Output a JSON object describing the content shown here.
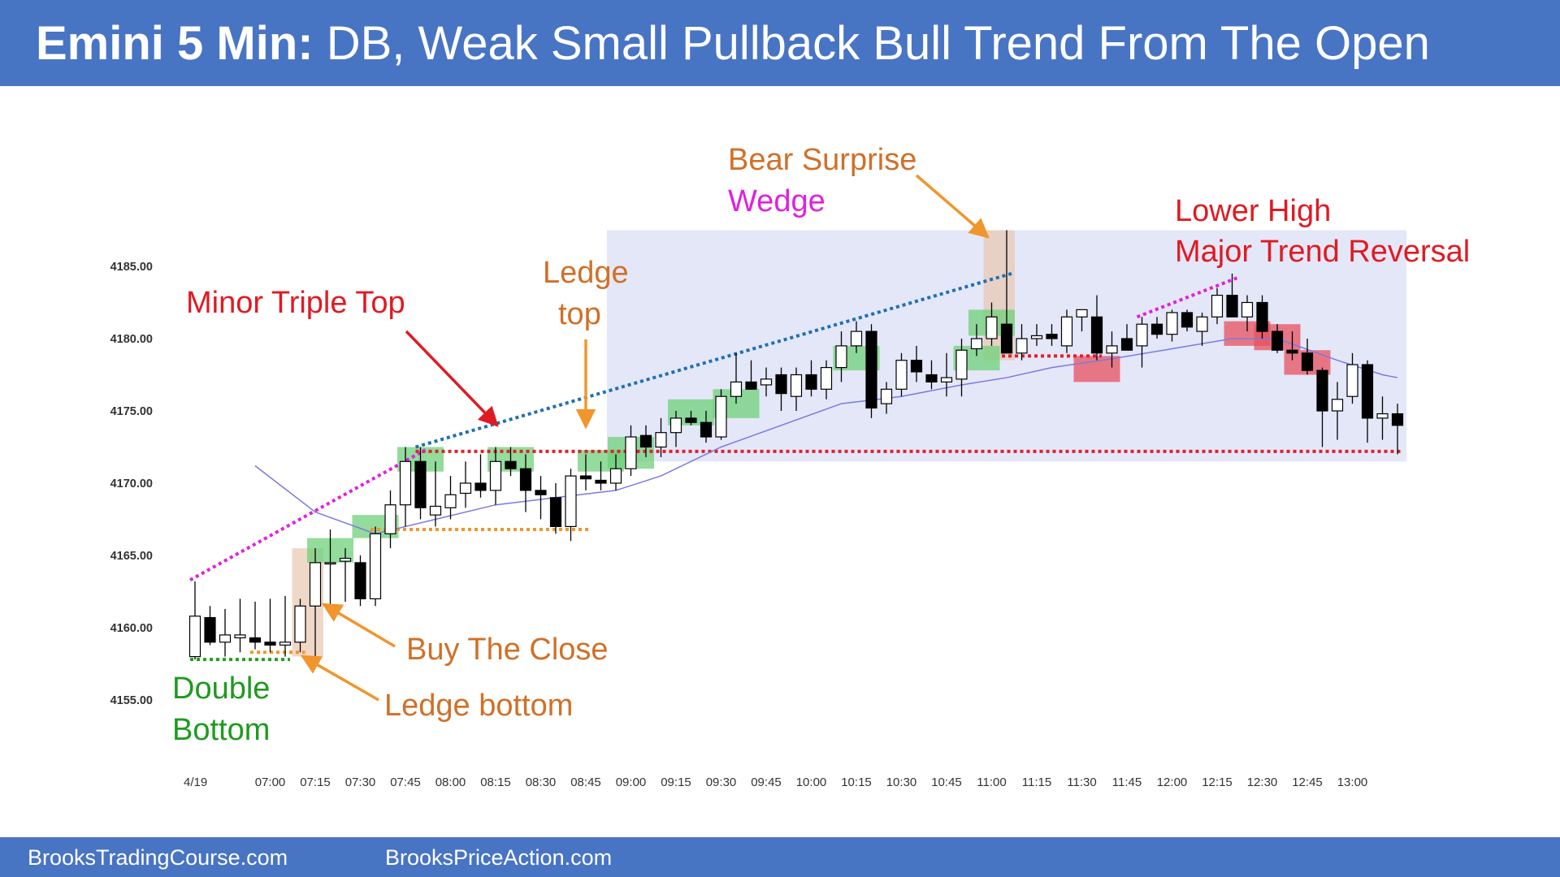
{
  "header": {
    "title_bold": "Emini 5 Min:",
    "title_rest": " DB, Weak Small Pullback Bull Trend From The Open"
  },
  "footer": {
    "left": "BrooksTradingCourse.com",
    "right": "BrooksPriceAction.com"
  },
  "colors": {
    "header_bg": "#4874c4",
    "bull_box": "#6fd07a",
    "bear_box": "#e8505f",
    "range_box": "#dfe3f7",
    "ema": "#7a7ae0",
    "support_line": "#e0202a",
    "wedge_line": "#1f6fb5",
    "magenta": "#e020e0",
    "orange": "#f0962c",
    "green_text": "#1e9a1e",
    "red_text": "#e01a22",
    "orange_text": "#d07028"
  },
  "chart_data": {
    "type": "candlestick",
    "title": "Emini 5 Min: DB, Weak Small Pullback Bull Trend From The Open",
    "date_label": "4/19",
    "y_ticks": [
      "4155.00",
      "4160.00",
      "4165.00",
      "4170.00",
      "4175.00",
      "4180.00",
      "4185.00"
    ],
    "ylim": [
      4151,
      4190
    ],
    "x_ticks": [
      {
        "bar": 5,
        "label": "07:00"
      },
      {
        "bar": 8,
        "label": "07:15"
      },
      {
        "bar": 11,
        "label": "07:30"
      },
      {
        "bar": 14,
        "label": "07:45"
      },
      {
        "bar": 17,
        "label": "08:00"
      },
      {
        "bar": 20,
        "label": "08:15"
      },
      {
        "bar": 23,
        "label": "08:30"
      },
      {
        "bar": 26,
        "label": "08:45"
      },
      {
        "bar": 29,
        "label": "09:00"
      },
      {
        "bar": 32,
        "label": "09:15"
      },
      {
        "bar": 35,
        "label": "09:30"
      },
      {
        "bar": 38,
        "label": "09:45"
      },
      {
        "bar": 41,
        "label": "10:00"
      },
      {
        "bar": 44,
        "label": "10:15"
      },
      {
        "bar": 47,
        "label": "10:30"
      },
      {
        "bar": 50,
        "label": "10:45"
      },
      {
        "bar": 53,
        "label": "11:00"
      },
      {
        "bar": 56,
        "label": "11:15"
      },
      {
        "bar": 59,
        "label": "11:30"
      },
      {
        "bar": 62,
        "label": "11:45"
      },
      {
        "bar": 65,
        "label": "12:00"
      },
      {
        "bar": 68,
        "label": "12:15"
      },
      {
        "bar": 71,
        "label": "12:30"
      },
      {
        "bar": 74,
        "label": "12:45"
      },
      {
        "bar": 77,
        "label": "13:00"
      }
    ],
    "bars": [
      [
        4158.0,
        4163.2,
        4157.8,
        4160.8
      ],
      [
        4160.7,
        4161.5,
        4158.8,
        4159.0
      ],
      [
        4159.0,
        4161.3,
        4158.0,
        4159.5
      ],
      [
        4159.3,
        4162.0,
        4158.3,
        4159.5
      ],
      [
        4159.3,
        4161.8,
        4158.5,
        4159.0
      ],
      [
        4159.0,
        4162.0,
        4158.3,
        4158.8
      ],
      [
        4158.8,
        4162.2,
        4158.0,
        4159.0
      ],
      [
        4159.0,
        4162.0,
        4158.3,
        4161.5
      ],
      [
        4161.5,
        4165.5,
        4158.0,
        4164.5
      ],
      [
        4164.5,
        4166.8,
        4161.5,
        4164.5
      ],
      [
        4164.6,
        4165.5,
        4161.8,
        4164.8
      ],
      [
        4164.5,
        4165.0,
        4161.5,
        4162.0
      ],
      [
        4162.0,
        4167.0,
        4161.5,
        4166.5
      ],
      [
        4166.5,
        4169.5,
        4165.5,
        4168.5
      ],
      [
        4168.5,
        4172.5,
        4167.0,
        4171.5
      ],
      [
        4171.5,
        4172.5,
        4167.5,
        4168.3
      ],
      [
        4167.8,
        4171.5,
        4167.0,
        4168.4
      ],
      [
        4168.3,
        4170.5,
        4167.5,
        4169.2
      ],
      [
        4169.3,
        4171.5,
        4168.3,
        4170.0
      ],
      [
        4170.0,
        4172.0,
        4169.0,
        4169.5
      ],
      [
        4169.5,
        4172.5,
        4168.5,
        4171.5
      ],
      [
        4171.5,
        4172.5,
        4170.5,
        4171.0
      ],
      [
        4171.0,
        4172.0,
        4168.0,
        4169.5
      ],
      [
        4169.5,
        4170.5,
        4167.5,
        4169.2
      ],
      [
        4169.0,
        4170.0,
        4166.5,
        4167.0
      ],
      [
        4167.0,
        4171.0,
        4166.0,
        4170.5
      ],
      [
        4170.5,
        4172.0,
        4169.5,
        4170.3
      ],
      [
        4170.2,
        4171.5,
        4169.5,
        4170.0
      ],
      [
        4170.0,
        4172.0,
        4169.5,
        4171.0
      ],
      [
        4171.0,
        4174.0,
        4170.5,
        4173.2
      ],
      [
        4173.3,
        4174.0,
        4171.8,
        4172.5
      ],
      [
        4172.5,
        4174.5,
        4171.8,
        4173.5
      ],
      [
        4173.5,
        4175.0,
        4172.5,
        4174.5
      ],
      [
        4174.5,
        4175.0,
        4174.0,
        4174.2
      ],
      [
        4174.2,
        4175.0,
        4172.8,
        4173.2
      ],
      [
        4173.2,
        4176.5,
        4173.0,
        4176.0
      ],
      [
        4176.0,
        4179.0,
        4175.5,
        4177.0
      ],
      [
        4177.0,
        4178.5,
        4176.5,
        4176.5
      ],
      [
        4176.8,
        4178.0,
        4176.0,
        4177.2
      ],
      [
        4177.5,
        4178.0,
        4175.0,
        4176.2
      ],
      [
        4176.0,
        4178.0,
        4175.0,
        4177.5
      ],
      [
        4177.5,
        4178.5,
        4176.0,
        4176.5
      ],
      [
        4176.5,
        4178.5,
        4175.8,
        4178.0
      ],
      [
        4178.0,
        4180.5,
        4177.0,
        4179.5
      ],
      [
        4179.5,
        4181.2,
        4179.0,
        4180.5
      ],
      [
        4180.5,
        4181.0,
        4174.5,
        4175.2
      ],
      [
        4175.5,
        4177.0,
        4174.8,
        4176.5
      ],
      [
        4176.5,
        4179.0,
        4176.0,
        4178.5
      ],
      [
        4178.5,
        4179.5,
        4177.0,
        4177.7
      ],
      [
        4177.5,
        4178.5,
        4176.5,
        4177.0
      ],
      [
        4177.0,
        4179.0,
        4176.0,
        4177.3
      ],
      [
        4177.2,
        4180.0,
        4176.0,
        4179.2
      ],
      [
        4179.3,
        4181.0,
        4178.8,
        4180.0
      ],
      [
        4180.0,
        4182.5,
        4179.5,
        4181.5
      ],
      [
        4181.0,
        4187.5,
        4179.5,
        4179.0
      ],
      [
        4179.0,
        4181.0,
        4178.5,
        4180.0
      ],
      [
        4180.0,
        4181.0,
        4179.5,
        4180.2
      ],
      [
        4180.3,
        4181.0,
        4179.5,
        4180.0
      ],
      [
        4179.5,
        4182.0,
        4179.0,
        4181.5
      ],
      [
        4181.5,
        4182.0,
        4180.5,
        4182.0
      ],
      [
        4181.5,
        4183.0,
        4178.5,
        4179.0
      ],
      [
        4179.0,
        4180.5,
        4178.0,
        4179.5
      ],
      [
        4180.0,
        4181.0,
        4179.2,
        4179.2
      ],
      [
        4179.5,
        4181.5,
        4178.0,
        4181.0
      ],
      [
        4181.0,
        4181.5,
        4180.0,
        4180.3
      ],
      [
        4180.3,
        4182.0,
        4179.8,
        4181.8
      ],
      [
        4181.8,
        4182.0,
        4180.5,
        4180.8
      ],
      [
        4180.5,
        4181.8,
        4179.5,
        4181.5
      ],
      [
        4181.5,
        4183.5,
        4181.0,
        4183.0
      ],
      [
        4183.0,
        4184.5,
        4181.5,
        4181.5
      ],
      [
        4181.5,
        4183.0,
        4180.5,
        4182.5
      ],
      [
        4182.5,
        4183.0,
        4180.0,
        4180.5
      ],
      [
        4180.5,
        4181.0,
        4179.0,
        4179.2
      ],
      [
        4179.2,
        4180.5,
        4178.5,
        4179.0
      ],
      [
        4179.0,
        4180.0,
        4177.5,
        4177.8
      ],
      [
        4177.8,
        4178.0,
        4172.5,
        4175.0
      ],
      [
        4175.0,
        4177.0,
        4173.0,
        4175.8
      ],
      [
        4176.0,
        4179.0,
        4175.5,
        4178.2
      ],
      [
        4178.2,
        4178.5,
        4172.8,
        4174.5
      ],
      [
        4174.5,
        4176.0,
        4173.0,
        4174.8
      ],
      [
        4174.8,
        4175.5,
        4172.0,
        4174.0
      ]
    ],
    "ema": [
      [
        4,
        4171.2
      ],
      [
        8,
        4168.0
      ],
      [
        12,
        4166.5
      ],
      [
        16,
        4167.5
      ],
      [
        20,
        4168.5
      ],
      [
        24,
        4169.0
      ],
      [
        28,
        4169.5
      ],
      [
        31,
        4170.5
      ],
      [
        35,
        4172.5
      ],
      [
        39,
        4174.0
      ],
      [
        43,
        4175.5
      ],
      [
        47,
        4176.0
      ],
      [
        51,
        4176.8
      ],
      [
        54,
        4177.3
      ],
      [
        57,
        4178.0
      ],
      [
        61,
        4178.6
      ],
      [
        65,
        4179.3
      ],
      [
        69,
        4180.0
      ],
      [
        72,
        4180.0
      ],
      [
        76,
        4178.5
      ],
      [
        79,
        4177.5
      ],
      [
        80,
        4177.3
      ]
    ],
    "annotations": [
      {
        "text": "Double",
        "color": "green"
      },
      {
        "text": "Bottom",
        "color": "green"
      },
      {
        "text": "Minor Triple Top",
        "color": "red"
      },
      {
        "text": "Ledge",
        "color": "orange"
      },
      {
        "text": "top",
        "color": "orange"
      },
      {
        "text": "Buy The Close",
        "color": "orange"
      },
      {
        "text": "Ledge bottom",
        "color": "orange"
      },
      {
        "text": "Bear Surprise",
        "color": "orange"
      },
      {
        "text": "Wedge",
        "color": "magenta"
      },
      {
        "text": "Lower High",
        "color": "red"
      },
      {
        "text": "Major Trend Reversal",
        "color": "red"
      }
    ],
    "signal_boxes": [
      {
        "type": "bull",
        "bars": [
          14,
          16
        ],
        "price": [
          4172.5,
          4170.8
        ]
      },
      {
        "type": "bull",
        "bars": [
          20,
          22
        ],
        "price": [
          4172.5,
          4170.8
        ]
      },
      {
        "type": "bull",
        "bars": [
          26,
          28
        ],
        "price": [
          4172.3,
          4170.8
        ]
      },
      {
        "type": "bull",
        "bars": [
          28,
          30
        ],
        "price": [
          4173.2,
          4171.0
        ]
      },
      {
        "type": "bull",
        "bars": [
          8,
          10
        ],
        "price": [
          4166.2,
          4164.5
        ]
      },
      {
        "type": "bull",
        "bars": [
          11,
          13
        ],
        "price": [
          4167.8,
          4166.2
        ]
      },
      {
        "type": "bull",
        "bars": [
          32,
          34
        ],
        "price": [
          4175.8,
          4174.0
        ]
      },
      {
        "type": "bull",
        "bars": [
          35,
          37
        ],
        "price": [
          4176.5,
          4174.5
        ]
      },
      {
        "type": "bull",
        "bars": [
          43,
          45
        ],
        "price": [
          4179.5,
          4177.8
        ]
      },
      {
        "type": "bull",
        "bars": [
          51,
          53
        ],
        "price": [
          4179.5,
          4177.8
        ]
      },
      {
        "type": "bull",
        "bars": [
          52,
          54
        ],
        "price": [
          4182.0,
          4180.2
        ]
      },
      {
        "type": "bear",
        "bars": [
          59,
          61
        ],
        "price": [
          4178.8,
          4177.0
        ]
      },
      {
        "type": "bear",
        "bars": [
          69,
          71
        ],
        "price": [
          4181.2,
          4179.5
        ]
      },
      {
        "type": "bear",
        "bars": [
          71,
          73
        ],
        "price": [
          4181.0,
          4179.2
        ]
      },
      {
        "type": "bear",
        "bars": [
          73,
          75
        ],
        "price": [
          4179.2,
          4177.5
        ]
      }
    ],
    "signal_bars_tan": [
      {
        "bars": [
          7,
          8
        ],
        "price": [
          4165.5,
          4158.0
        ]
      },
      {
        "bars": [
          53,
          54
        ],
        "price": [
          4187.5,
          4178.5
        ]
      }
    ],
    "trading_range_box": {
      "bars": [
        28,
        80
      ],
      "price": [
        4187.5,
        4171.5
      ]
    },
    "lines": [
      {
        "style": "dotted",
        "color": "green",
        "bars": [
          0,
          6
        ],
        "price": 4157.8
      },
      {
        "style": "dotted",
        "color": "orange",
        "bars": [
          4,
          7
        ],
        "price": 4158.3
      },
      {
        "style": "dotted",
        "color": "orange",
        "bars": [
          12,
          26
        ],
        "price": 4166.8
      },
      {
        "style": "dotted",
        "color": "red",
        "bars": [
          15,
          80
        ],
        "price": 4172.2
      },
      {
        "style": "dotted",
        "color": "red",
        "bars": [
          54,
          60
        ],
        "price": 4178.8
      },
      {
        "style": "dotted",
        "color": "magenta",
        "bars": [
          0,
          15
        ],
        "prices": [
          4163.3,
          4172.3
        ]
      },
      {
        "style": "dotted",
        "color": "blue",
        "bars": [
          15,
          54
        ],
        "prices": [
          4172.5,
          4184.5
        ]
      },
      {
        "style": "dotted",
        "color": "magenta",
        "bars": [
          63,
          69
        ],
        "prices": [
          4181.5,
          4184.2
        ]
      }
    ]
  }
}
